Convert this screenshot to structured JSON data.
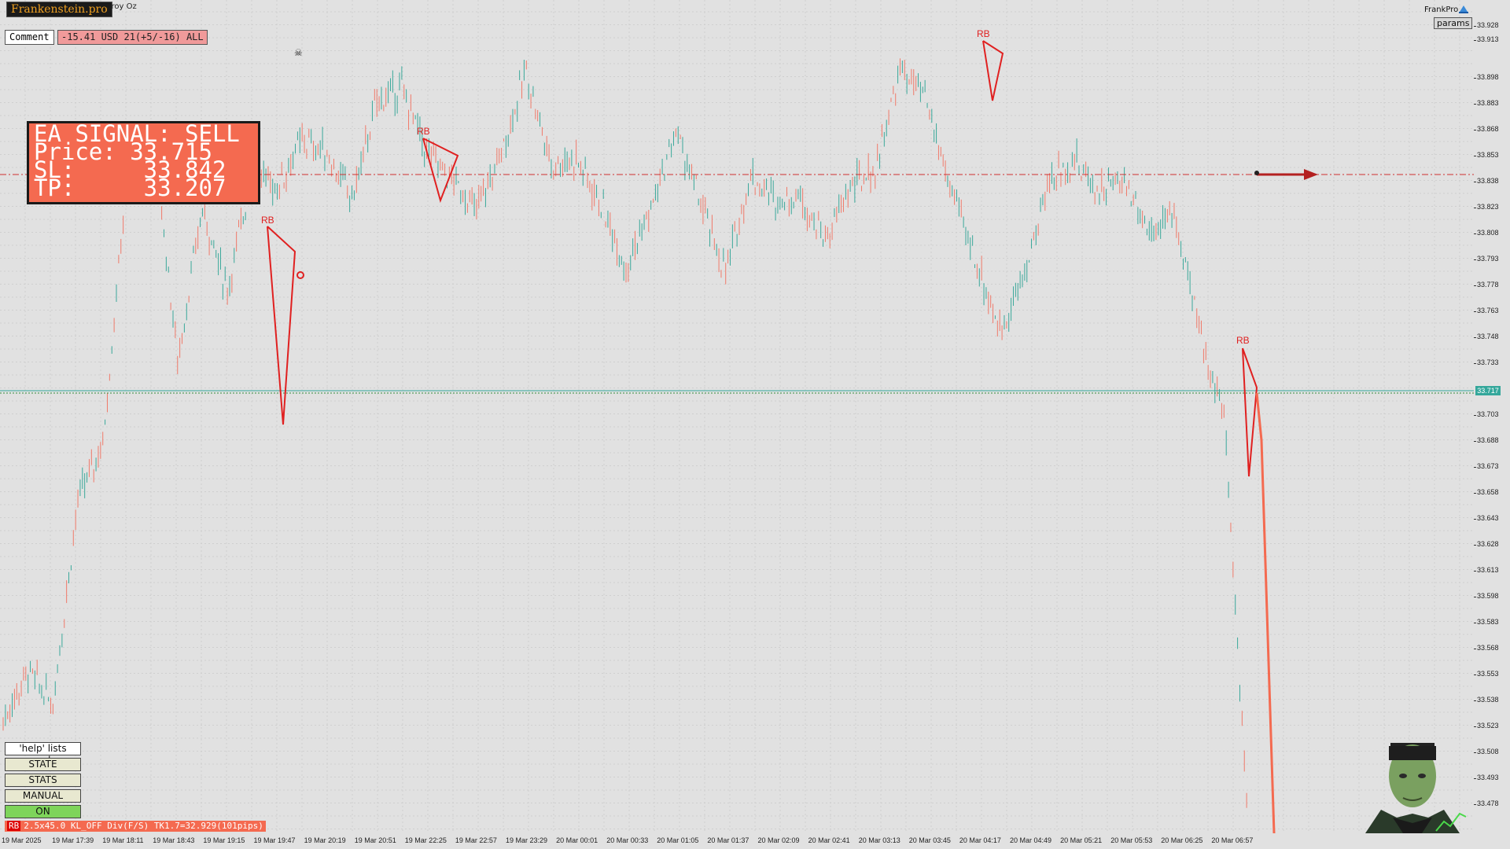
{
  "window": {
    "symbol_title": "...roy Oz",
    "brand": "Frankenstein.pro",
    "account_label": "FrankPro",
    "params_label": "params"
  },
  "toolbar": {
    "comment_label": "Comment",
    "pnl_text": "-15.41 USD 21(+5/-16) ALL"
  },
  "signal": {
    "line1": "EA SIGNAL: SELL",
    "line2": "Price: 33.715",
    "line3": "SL:     33.842",
    "line4": "TP:     33.207"
  },
  "panel": {
    "help_label": "'help' lists cmds",
    "state_label": "STATE",
    "stats_label": "STATS",
    "manual_label": "MANUAL",
    "on_label": "ON",
    "status_rb": "RB",
    "status_text": "2.5x45.0 KL_OFF Div(F/S) TK1.7=32.929(101pips)"
  },
  "current_price": "33.717",
  "colors": {
    "up_candle": "#3aa89a",
    "down_candle": "#f07a6a",
    "signal_box": "#f46a50",
    "sl_line": "#d03030",
    "current_line": "#34a79b",
    "rb_marker": "#e02020",
    "on_button": "#7ed45a"
  },
  "icons": [
    "skull-icon",
    "arrow-right-icon",
    "frankpro-icon",
    "mascot-icon"
  ],
  "price_axis": {
    "ticks": [
      "33.928",
      "33.913",
      "33.898",
      "33.883",
      "33.868",
      "33.853",
      "33.838",
      "33.823",
      "33.808",
      "33.793",
      "33.778",
      "33.763",
      "33.748",
      "33.733",
      "33.703",
      "33.688",
      "33.673",
      "33.658",
      "33.643",
      "33.628",
      "33.613",
      "33.598",
      "33.583",
      "33.568",
      "33.553",
      "33.538",
      "33.523",
      "33.508",
      "33.493",
      "33.478"
    ]
  },
  "time_axis": {
    "ticks": [
      "19 Mar 2025",
      "19 Mar 17:39",
      "19 Mar 18:11",
      "19 Mar 18:43",
      "19 Mar 19:15",
      "19 Mar 19:47",
      "19 Mar 20:19",
      "19 Mar 20:51",
      "19 Mar 22:25",
      "19 Mar 22:57",
      "19 Mar 23:29",
      "20 Mar 00:01",
      "20 Mar 00:33",
      "20 Mar 01:05",
      "20 Mar 01:37",
      "20 Mar 02:09",
      "20 Mar 02:41",
      "20 Mar 03:13",
      "20 Mar 03:45",
      "20 Mar 04:17",
      "20 Mar 04:49",
      "20 Mar 05:21",
      "20 Mar 05:53",
      "20 Mar 06:25",
      "20 Mar 06:57"
    ]
  },
  "markers": {
    "rb_label": "RB"
  },
  "chart_data": {
    "type": "line",
    "ylim": [
      33.463,
      33.943
    ],
    "levels": {
      "stop_loss": 33.842,
      "current": 33.717,
      "entry": 33.715,
      "take_profit": 33.207
    },
    "path_anchor_prices": [
      33.528,
      33.556,
      33.538,
      33.655,
      33.688,
      33.845,
      33.872,
      33.735,
      33.823,
      33.775,
      33.845,
      33.835,
      33.862,
      33.855,
      33.828,
      33.885,
      33.892,
      33.855,
      33.84,
      33.822,
      33.855,
      33.902,
      33.848,
      33.852,
      33.825,
      33.79,
      33.822,
      33.868,
      33.825,
      33.785,
      33.842,
      33.828,
      33.83,
      33.805,
      33.835,
      33.845,
      33.903,
      33.887,
      33.835,
      33.795,
      33.752,
      33.785,
      33.84,
      33.85,
      33.833,
      33.84,
      33.81,
      33.82,
      33.752,
      33.705,
      33.463
    ]
  }
}
